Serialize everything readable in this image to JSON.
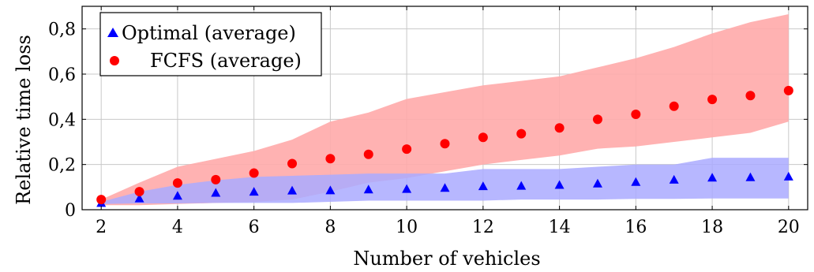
{
  "chart_data": {
    "type": "scatter",
    "xlabel": "Number of vehicles",
    "ylabel": "Relative time loss",
    "xlim": [
      1.5,
      20.5
    ],
    "ylim": [
      0,
      0.9
    ],
    "x_ticks": [
      2,
      4,
      6,
      8,
      10,
      12,
      14,
      16,
      18,
      20
    ],
    "y_ticks": [
      0,
      0.2,
      0.4,
      0.6,
      0.8
    ],
    "y_tick_labels": [
      "0",
      "0,2",
      "0,4",
      "0,6",
      "0,8"
    ],
    "grid": true,
    "legend_position": "top-left",
    "x": [
      2,
      3,
      4,
      5,
      6,
      7,
      8,
      9,
      10,
      11,
      12,
      13,
      14,
      15,
      16,
      17,
      18,
      19,
      20
    ],
    "series": [
      {
        "name": "Optimal (average)",
        "marker": "triangle",
        "color": "#0000ff",
        "band_color": "#aaaaff",
        "values": [
          0.03,
          0.05,
          0.062,
          0.075,
          0.08,
          0.085,
          0.086,
          0.09,
          0.092,
          0.097,
          0.104,
          0.106,
          0.11,
          0.116,
          0.123,
          0.133,
          0.142,
          0.144,
          0.147
        ],
        "band_low": [
          0.025,
          0.028,
          0.028,
          0.03,
          0.03,
          0.03,
          0.035,
          0.04,
          0.04,
          0.04,
          0.04,
          0.045,
          0.045,
          0.045,
          0.048,
          0.048,
          0.05,
          0.05,
          0.05
        ],
        "band_high": [
          0.035,
          0.08,
          0.11,
          0.13,
          0.145,
          0.15,
          0.155,
          0.16,
          0.16,
          0.16,
          0.18,
          0.18,
          0.18,
          0.19,
          0.2,
          0.2,
          0.23,
          0.23,
          0.23
        ]
      },
      {
        "name": "FCFS (average)",
        "marker": "circle",
        "color": "#ff0000",
        "band_color": "#ffaaaa",
        "values": [
          0.045,
          0.08,
          0.118,
          0.133,
          0.162,
          0.204,
          0.226,
          0.245,
          0.268,
          0.292,
          0.32,
          0.336,
          0.362,
          0.4,
          0.422,
          0.458,
          0.488,
          0.505,
          0.527
        ],
        "band_low": [
          0.02,
          0.02,
          0.025,
          0.03,
          0.035,
          0.045,
          0.08,
          0.12,
          0.14,
          0.17,
          0.2,
          0.22,
          0.24,
          0.27,
          0.28,
          0.3,
          0.32,
          0.34,
          0.39
        ],
        "band_high": [
          0.045,
          0.12,
          0.19,
          0.225,
          0.26,
          0.31,
          0.39,
          0.43,
          0.49,
          0.52,
          0.55,
          0.57,
          0.59,
          0.63,
          0.67,
          0.72,
          0.78,
          0.83,
          0.865
        ]
      }
    ]
  }
}
